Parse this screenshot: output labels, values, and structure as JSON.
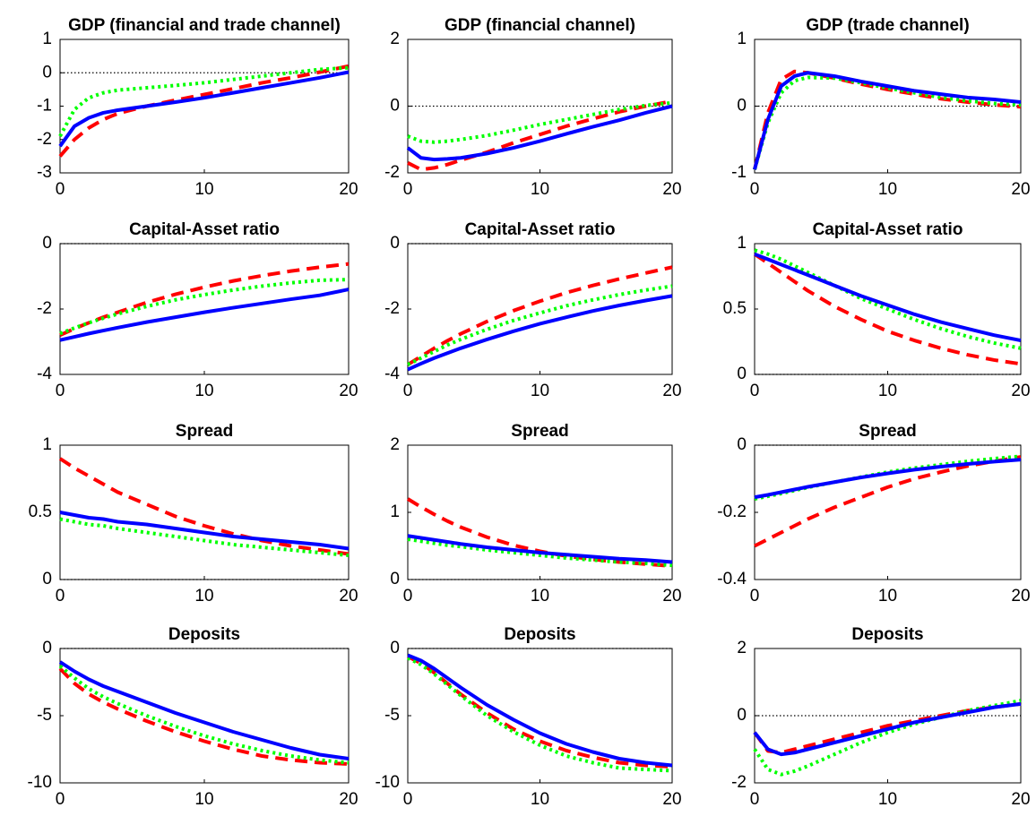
{
  "chart_data": [
    {
      "type": "line",
      "title": "GDP (financial and trade channel)",
      "x": [
        0,
        1,
        2,
        3,
        4,
        6,
        8,
        10,
        12,
        14,
        16,
        18,
        20
      ],
      "xlim": [
        0,
        20
      ],
      "xticks": [
        0,
        10,
        20
      ],
      "ylim": [
        -3,
        1
      ],
      "yticks": [
        -3,
        -2,
        -1,
        0,
        1
      ],
      "hline": 0,
      "series": [
        {
          "color": "#0000ff",
          "style": "solid",
          "values": [
            -2.2,
            -1.6,
            -1.35,
            -1.2,
            -1.12,
            -1.0,
            -0.88,
            -0.75,
            -0.6,
            -0.45,
            -0.3,
            -0.15,
            0.02
          ]
        },
        {
          "color": "#ff0000",
          "style": "dashed",
          "values": [
            -2.5,
            -2.0,
            -1.65,
            -1.4,
            -1.22,
            -1.0,
            -0.82,
            -0.65,
            -0.48,
            -0.3,
            -0.15,
            0.02,
            0.2
          ]
        },
        {
          "color": "#00ff00",
          "style": "dotted",
          "values": [
            -1.9,
            -1.1,
            -0.75,
            -0.6,
            -0.52,
            -0.45,
            -0.38,
            -0.3,
            -0.2,
            -0.1,
            0.0,
            0.1,
            0.15
          ]
        }
      ]
    },
    {
      "type": "line",
      "title": "GDP (financial channel)",
      "x": [
        0,
        1,
        2,
        3,
        4,
        6,
        8,
        10,
        12,
        14,
        16,
        18,
        20
      ],
      "xlim": [
        0,
        20
      ],
      "xticks": [
        0,
        10,
        20
      ],
      "ylim": [
        -2,
        2
      ],
      "yticks": [
        -2,
        0,
        2
      ],
      "hline": 0,
      "series": [
        {
          "color": "#0000ff",
          "style": "solid",
          "values": [
            -1.25,
            -1.55,
            -1.6,
            -1.58,
            -1.55,
            -1.42,
            -1.25,
            -1.05,
            -0.83,
            -0.62,
            -0.42,
            -0.2,
            0.0
          ]
        },
        {
          "color": "#ff0000",
          "style": "dashed",
          "values": [
            -1.7,
            -1.9,
            -1.85,
            -1.75,
            -1.62,
            -1.38,
            -1.1,
            -0.85,
            -0.6,
            -0.38,
            -0.17,
            0.0,
            0.15
          ]
        },
        {
          "color": "#00ff00",
          "style": "dotted",
          "values": [
            -0.9,
            -1.05,
            -1.08,
            -1.05,
            -1.0,
            -0.88,
            -0.72,
            -0.55,
            -0.4,
            -0.25,
            -0.1,
            0.02,
            0.1
          ]
        }
      ]
    },
    {
      "type": "line",
      "title": "GDP (trade channel)",
      "x": [
        0,
        1,
        2,
        3,
        4,
        6,
        8,
        10,
        12,
        14,
        16,
        18,
        20
      ],
      "xlim": [
        0,
        20
      ],
      "xticks": [
        0,
        10,
        20
      ],
      "ylim": [
        -1,
        1
      ],
      "yticks": [
        -1,
        0,
        1
      ],
      "hline": 0,
      "series": [
        {
          "color": "#0000ff",
          "style": "solid",
          "values": [
            -0.95,
            -0.2,
            0.3,
            0.45,
            0.5,
            0.45,
            0.37,
            0.3,
            0.23,
            0.18,
            0.13,
            0.1,
            0.06
          ]
        },
        {
          "color": "#ff0000",
          "style": "dashed",
          "values": [
            -0.95,
            -0.1,
            0.4,
            0.52,
            0.5,
            0.42,
            0.33,
            0.25,
            0.18,
            0.11,
            0.06,
            0.02,
            -0.01
          ]
        },
        {
          "color": "#00ff00",
          "style": "dotted",
          "values": [
            -0.95,
            -0.25,
            0.2,
            0.38,
            0.43,
            0.42,
            0.35,
            0.27,
            0.2,
            0.13,
            0.08,
            0.04,
            0.02
          ]
        }
      ]
    },
    {
      "type": "line",
      "title": "Capital-Asset ratio",
      "x": [
        0,
        1,
        2,
        3,
        4,
        6,
        8,
        10,
        12,
        14,
        16,
        18,
        20
      ],
      "xlim": [
        0,
        20
      ],
      "xticks": [
        0,
        10,
        20
      ],
      "ylim": [
        -4,
        0
      ],
      "yticks": [
        -4,
        -2,
        0
      ],
      "hline": 0,
      "series": [
        {
          "color": "#0000ff",
          "style": "solid",
          "values": [
            -2.95,
            -2.85,
            -2.75,
            -2.66,
            -2.57,
            -2.4,
            -2.25,
            -2.1,
            -1.96,
            -1.83,
            -1.7,
            -1.58,
            -1.4
          ]
        },
        {
          "color": "#ff0000",
          "style": "dashed",
          "values": [
            -2.8,
            -2.6,
            -2.42,
            -2.25,
            -2.1,
            -1.8,
            -1.55,
            -1.33,
            -1.14,
            -0.98,
            -0.84,
            -0.72,
            -0.62
          ]
        },
        {
          "color": "#00ff00",
          "style": "dotted",
          "values": [
            -2.75,
            -2.58,
            -2.42,
            -2.28,
            -2.15,
            -1.92,
            -1.72,
            -1.56,
            -1.42,
            -1.3,
            -1.2,
            -1.12,
            -1.1
          ]
        }
      ]
    },
    {
      "type": "line",
      "title": "Capital-Asset ratio",
      "x": [
        0,
        1,
        2,
        3,
        4,
        6,
        8,
        10,
        12,
        14,
        16,
        18,
        20
      ],
      "xlim": [
        0,
        20
      ],
      "xticks": [
        0,
        10,
        20
      ],
      "ylim": [
        -4,
        0
      ],
      "yticks": [
        -4,
        -2,
        0
      ],
      "hline": 0,
      "series": [
        {
          "color": "#0000ff",
          "style": "solid",
          "values": [
            -3.85,
            -3.67,
            -3.5,
            -3.35,
            -3.2,
            -2.93,
            -2.68,
            -2.45,
            -2.25,
            -2.06,
            -1.89,
            -1.74,
            -1.6
          ]
        },
        {
          "color": "#ff0000",
          "style": "dashed",
          "values": [
            -3.7,
            -3.45,
            -3.2,
            -2.97,
            -2.76,
            -2.38,
            -2.05,
            -1.76,
            -1.5,
            -1.28,
            -1.08,
            -0.9,
            -0.72
          ]
        },
        {
          "color": "#00ff00",
          "style": "dotted",
          "values": [
            -3.7,
            -3.5,
            -3.3,
            -3.1,
            -2.93,
            -2.62,
            -2.35,
            -2.12,
            -1.9,
            -1.72,
            -1.56,
            -1.42,
            -1.3
          ]
        }
      ]
    },
    {
      "type": "line",
      "title": "Capital-Asset ratio",
      "x": [
        0,
        1,
        2,
        3,
        4,
        6,
        8,
        10,
        12,
        14,
        16,
        18,
        20
      ],
      "xlim": [
        0,
        20
      ],
      "xticks": [
        0,
        10,
        20
      ],
      "ylim": [
        0,
        1
      ],
      "yticks": [
        0,
        0.5,
        1
      ],
      "hline": 0,
      "series": [
        {
          "color": "#0000ff",
          "style": "solid",
          "values": [
            0.92,
            0.88,
            0.84,
            0.8,
            0.76,
            0.68,
            0.6,
            0.53,
            0.46,
            0.4,
            0.35,
            0.3,
            0.26
          ]
        },
        {
          "color": "#ff0000",
          "style": "dashed",
          "values": [
            0.92,
            0.85,
            0.78,
            0.71,
            0.64,
            0.52,
            0.42,
            0.33,
            0.26,
            0.2,
            0.15,
            0.11,
            0.08
          ]
        },
        {
          "color": "#00ff00",
          "style": "dotted",
          "values": [
            0.95,
            0.92,
            0.88,
            0.83,
            0.78,
            0.68,
            0.58,
            0.5,
            0.42,
            0.35,
            0.29,
            0.24,
            0.2
          ]
        }
      ]
    },
    {
      "type": "line",
      "title": "Spread",
      "x": [
        0,
        1,
        2,
        3,
        4,
        6,
        8,
        10,
        12,
        14,
        16,
        18,
        20
      ],
      "xlim": [
        0,
        20
      ],
      "xticks": [
        0,
        10,
        20
      ],
      "ylim": [
        0,
        1
      ],
      "yticks": [
        0,
        0.5,
        1
      ],
      "hline": 0,
      "series": [
        {
          "color": "#0000ff",
          "style": "solid",
          "values": [
            0.5,
            0.48,
            0.46,
            0.45,
            0.43,
            0.41,
            0.38,
            0.35,
            0.32,
            0.3,
            0.28,
            0.26,
            0.23
          ]
        },
        {
          "color": "#ff0000",
          "style": "dashed",
          "values": [
            0.9,
            0.83,
            0.77,
            0.71,
            0.65,
            0.56,
            0.47,
            0.4,
            0.34,
            0.29,
            0.25,
            0.22,
            0.19
          ]
        },
        {
          "color": "#00ff00",
          "style": "dotted",
          "values": [
            0.45,
            0.43,
            0.41,
            0.4,
            0.38,
            0.35,
            0.32,
            0.29,
            0.26,
            0.24,
            0.22,
            0.2,
            0.18
          ]
        }
      ]
    },
    {
      "type": "line",
      "title": "Spread",
      "x": [
        0,
        1,
        2,
        3,
        4,
        6,
        8,
        10,
        12,
        14,
        16,
        18,
        20
      ],
      "xlim": [
        0,
        20
      ],
      "xticks": [
        0,
        10,
        20
      ],
      "ylim": [
        0,
        2
      ],
      "yticks": [
        0,
        1,
        2
      ],
      "hline": 0,
      "series": [
        {
          "color": "#0000ff",
          "style": "solid",
          "values": [
            0.65,
            0.62,
            0.59,
            0.56,
            0.53,
            0.48,
            0.44,
            0.4,
            0.37,
            0.34,
            0.31,
            0.29,
            0.26
          ]
        },
        {
          "color": "#ff0000",
          "style": "dashed",
          "values": [
            1.2,
            1.08,
            0.97,
            0.87,
            0.78,
            0.63,
            0.51,
            0.42,
            0.35,
            0.3,
            0.26,
            0.23,
            0.2
          ]
        },
        {
          "color": "#00ff00",
          "style": "dotted",
          "values": [
            0.6,
            0.57,
            0.54,
            0.51,
            0.49,
            0.44,
            0.4,
            0.36,
            0.32,
            0.29,
            0.26,
            0.24,
            0.21
          ]
        }
      ]
    },
    {
      "type": "line",
      "title": "Spread",
      "x": [
        0,
        1,
        2,
        3,
        4,
        6,
        8,
        10,
        12,
        14,
        16,
        18,
        20
      ],
      "xlim": [
        0,
        20
      ],
      "xticks": [
        0,
        10,
        20
      ],
      "ylim": [
        -0.4,
        0
      ],
      "yticks": [
        -0.4,
        -0.2,
        0
      ],
      "hline": 0,
      "series": [
        {
          "color": "#0000ff",
          "style": "solid",
          "values": [
            -0.155,
            -0.148,
            -0.14,
            -0.132,
            -0.124,
            -0.11,
            -0.096,
            -0.084,
            -0.073,
            -0.064,
            -0.056,
            -0.049,
            -0.043
          ]
        },
        {
          "color": "#ff0000",
          "style": "dashed",
          "values": [
            -0.3,
            -0.28,
            -0.26,
            -0.24,
            -0.22,
            -0.185,
            -0.155,
            -0.125,
            -0.1,
            -0.08,
            -0.062,
            -0.048,
            -0.035
          ]
        },
        {
          "color": "#00ff00",
          "style": "dotted",
          "values": [
            -0.16,
            -0.152,
            -0.144,
            -0.135,
            -0.126,
            -0.11,
            -0.095,
            -0.08,
            -0.068,
            -0.058,
            -0.048,
            -0.04,
            -0.033
          ]
        }
      ]
    },
    {
      "type": "line",
      "title": "Deposits",
      "x": [
        0,
        1,
        2,
        3,
        4,
        6,
        8,
        10,
        12,
        14,
        16,
        18,
        20
      ],
      "xlim": [
        0,
        20
      ],
      "xticks": [
        0,
        10,
        20
      ],
      "ylim": [
        -10,
        0
      ],
      "yticks": [
        -10,
        -5,
        0
      ],
      "hline": 0,
      "series": [
        {
          "color": "#0000ff",
          "style": "solid",
          "values": [
            -1.0,
            -1.7,
            -2.3,
            -2.8,
            -3.2,
            -4.0,
            -4.8,
            -5.5,
            -6.2,
            -6.8,
            -7.4,
            -7.9,
            -8.2
          ]
        },
        {
          "color": "#ff0000",
          "style": "dashed",
          "values": [
            -1.5,
            -2.6,
            -3.4,
            -4.0,
            -4.5,
            -5.4,
            -6.2,
            -6.9,
            -7.5,
            -8.0,
            -8.3,
            -8.5,
            -8.6
          ]
        },
        {
          "color": "#00ff00",
          "style": "dotted",
          "values": [
            -1.3,
            -2.2,
            -3.0,
            -3.6,
            -4.1,
            -5.0,
            -5.8,
            -6.5,
            -7.1,
            -7.6,
            -8.0,
            -8.3,
            -8.5
          ]
        }
      ]
    },
    {
      "type": "line",
      "title": "Deposits",
      "x": [
        0,
        1,
        2,
        3,
        4,
        6,
        8,
        10,
        12,
        14,
        16,
        18,
        20
      ],
      "xlim": [
        0,
        20
      ],
      "xticks": [
        0,
        10,
        20
      ],
      "ylim": [
        -10,
        0
      ],
      "yticks": [
        -10,
        -5,
        0
      ],
      "hline": 0,
      "series": [
        {
          "color": "#0000ff",
          "style": "solid",
          "values": [
            -0.5,
            -0.9,
            -1.5,
            -2.2,
            -2.9,
            -4.2,
            -5.3,
            -6.3,
            -7.1,
            -7.7,
            -8.2,
            -8.5,
            -8.7
          ]
        },
        {
          "color": "#ff0000",
          "style": "dashed",
          "values": [
            -0.6,
            -1.1,
            -1.8,
            -2.6,
            -3.4,
            -4.8,
            -6.0,
            -6.9,
            -7.6,
            -8.1,
            -8.5,
            -8.7,
            -8.8
          ]
        },
        {
          "color": "#00ff00",
          "style": "dotted",
          "values": [
            -0.7,
            -1.2,
            -1.9,
            -2.7,
            -3.5,
            -5.0,
            -6.2,
            -7.2,
            -8.0,
            -8.5,
            -8.9,
            -9.0,
            -9.1
          ]
        }
      ]
    },
    {
      "type": "line",
      "title": "Deposits",
      "x": [
        0,
        1,
        2,
        3,
        4,
        6,
        8,
        10,
        12,
        14,
        16,
        18,
        20
      ],
      "xlim": [
        0,
        20
      ],
      "xticks": [
        0,
        10,
        20
      ],
      "ylim": [
        -2,
        2
      ],
      "yticks": [
        -2,
        0,
        2
      ],
      "hline": 0,
      "series": [
        {
          "color": "#0000ff",
          "style": "solid",
          "values": [
            -0.5,
            -1.0,
            -1.15,
            -1.1,
            -1.0,
            -0.8,
            -0.6,
            -0.4,
            -0.2,
            -0.05,
            0.1,
            0.25,
            0.35
          ]
        },
        {
          "color": "#ff0000",
          "style": "dashed",
          "values": [
            -0.5,
            -1.05,
            -1.1,
            -1.0,
            -0.9,
            -0.7,
            -0.5,
            -0.3,
            -0.15,
            0.0,
            0.15,
            0.25,
            0.35
          ]
        },
        {
          "color": "#00ff00",
          "style": "dotted",
          "values": [
            -1.0,
            -1.6,
            -1.75,
            -1.65,
            -1.5,
            -1.15,
            -0.8,
            -0.5,
            -0.25,
            -0.05,
            0.15,
            0.3,
            0.45
          ]
        }
      ]
    }
  ]
}
